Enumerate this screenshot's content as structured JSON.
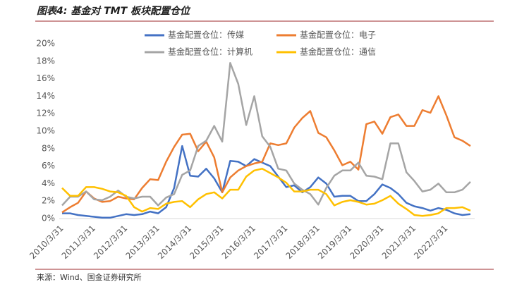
{
  "chart_data": {
    "type": "line",
    "title": "图表4: 基金对 TMT 板块配置仓位",
    "source": "来源：Wind、国金证券研究所",
    "categories": [
      "2010/3/31",
      null,
      null,
      null,
      "2011/3/31",
      null,
      null,
      null,
      "2012/3/31",
      null,
      null,
      null,
      "2013/3/31",
      null,
      null,
      null,
      "2014/3/31",
      null,
      null,
      null,
      "2015/3/31",
      null,
      null,
      null,
      "2016/3/31",
      null,
      null,
      null,
      "2017/3/31",
      null,
      null,
      null,
      "2018/3/31",
      null,
      null,
      null,
      "2019/3/31",
      null,
      null,
      null,
      "2020/3/31",
      null,
      null,
      null,
      "2021/3/31",
      null,
      null,
      null,
      "2022/3/31",
      null,
      null,
      null
    ],
    "series": [
      {
        "name": "基金配置仓位：传媒",
        "color": "#4472c4",
        "values": [
          0.6,
          0.6,
          0.4,
          0.3,
          0.2,
          0.1,
          0.1,
          0.3,
          0.5,
          0.4,
          0.5,
          0.8,
          0.6,
          1.3,
          3.5,
          8.3,
          4.9,
          4.8,
          5.7,
          4.6,
          3.0,
          6.6,
          6.5,
          6.0,
          6.8,
          6.4,
          6.0,
          4.8,
          3.6,
          3.8,
          3.0,
          3.6,
          4.7,
          4.0,
          2.5,
          2.6,
          2.6,
          2.0,
          2.0,
          2.8,
          3.9,
          3.5,
          2.8,
          1.8,
          1.4,
          1.2,
          0.9,
          1.2,
          1.0,
          0.6,
          0.4,
          0.5
        ]
      },
      {
        "name": "基金配置仓位：电子",
        "color": "#ed7d31",
        "values": [
          0.7,
          1.3,
          1.8,
          3.1,
          2.3,
          1.9,
          2.0,
          2.5,
          2.3,
          2.2,
          3.5,
          4.5,
          4.4,
          6.5,
          8.2,
          9.6,
          9.7,
          7.7,
          8.8,
          7.0,
          3.0,
          4.7,
          5.5,
          6.0,
          6.3,
          6.5,
          8.6,
          8.4,
          8.6,
          10.4,
          11.5,
          12.3,
          9.8,
          9.3,
          7.8,
          6.1,
          6.5,
          5.6,
          10.8,
          11.1,
          9.7,
          11.6,
          11.9,
          10.6,
          10.6,
          12.4,
          12.1,
          14.0,
          11.8,
          9.3,
          8.9,
          8.3
        ]
      },
      {
        "name": "基金配置仓位：计算机",
        "color": "#a5a5a5",
        "values": [
          1.5,
          2.5,
          2.5,
          3.1,
          2.2,
          2.1,
          2.5,
          3.2,
          2.5,
          2.3,
          2.5,
          2.5,
          1.5,
          2.4,
          2.8,
          5.0,
          5.5,
          8.3,
          8.9,
          10.6,
          8.8,
          17.8,
          15.4,
          10.7,
          14.0,
          9.4,
          8.2,
          5.7,
          5.5,
          4.0,
          3.3,
          2.8,
          1.6,
          3.5,
          4.9,
          5.5,
          5.5,
          6.4,
          4.9,
          4.8,
          4.5,
          8.6,
          8.6,
          5.3,
          4.3,
          3.1,
          3.3,
          4.0,
          3.0,
          3.0,
          3.3,
          4.2
        ]
      },
      {
        "name": "基金配置仓位：通信",
        "color": "#ffc000",
        "values": [
          3.5,
          2.6,
          2.6,
          3.6,
          3.6,
          3.4,
          3.1,
          3.0,
          2.6,
          1.3,
          0.8,
          1.2,
          1.1,
          1.7,
          1.9,
          2.0,
          1.3,
          2.2,
          2.8,
          3.0,
          2.3,
          3.3,
          3.3,
          4.8,
          5.5,
          5.7,
          5.2,
          4.7,
          4.1,
          3.1,
          3.1,
          3.3,
          3.3,
          2.8,
          1.5,
          1.9,
          2.1,
          1.9,
          1.6,
          1.7,
          2.1,
          2.6,
          1.7,
          1.1,
          0.4,
          0.3,
          0.4,
          0.6,
          1.2,
          1.2,
          1.3,
          0.9
        ]
      }
    ],
    "ylim": [
      0,
      20
    ],
    "yticks": [
      {
        "value": 0,
        "label": "0%"
      },
      {
        "value": 2,
        "label": "2%"
      },
      {
        "value": 4,
        "label": "4%"
      },
      {
        "value": 6,
        "label": "6%"
      },
      {
        "value": 8,
        "label": "8%"
      },
      {
        "value": 10,
        "label": "10%"
      },
      {
        "value": 12,
        "label": "12%"
      },
      {
        "value": 14,
        "label": "14%"
      },
      {
        "value": 16,
        "label": "16%"
      },
      {
        "value": 18,
        "label": "18%"
      },
      {
        "value": 20,
        "label": "20%"
      }
    ],
    "grid": false
  }
}
